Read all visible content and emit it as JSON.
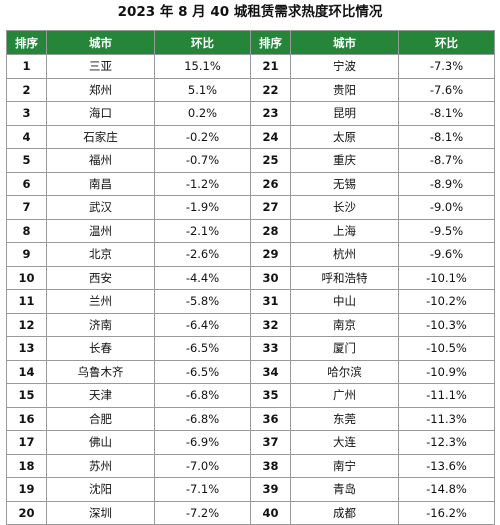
{
  "title": "2023 年 8 月 40 城租赁需求热度环比情况",
  "headers": {
    "rank": "排序",
    "city": "城市",
    "ratio": "环比"
  },
  "colors": {
    "header_bg": "#25863a",
    "header_text": "#ffffff",
    "border": "#9a9a9a"
  },
  "rows": [
    {
      "left": {
        "rank": "1",
        "city": "三亚",
        "ratio": "15.1%"
      },
      "right": {
        "rank": "21",
        "city": "宁波",
        "ratio": "-7.3%"
      }
    },
    {
      "left": {
        "rank": "2",
        "city": "郑州",
        "ratio": "5.1%"
      },
      "right": {
        "rank": "22",
        "city": "贵阳",
        "ratio": "-7.6%"
      }
    },
    {
      "left": {
        "rank": "3",
        "city": "海口",
        "ratio": "0.2%"
      },
      "right": {
        "rank": "23",
        "city": "昆明",
        "ratio": "-8.1%"
      }
    },
    {
      "left": {
        "rank": "4",
        "city": "石家庄",
        "ratio": "-0.2%"
      },
      "right": {
        "rank": "24",
        "city": "太原",
        "ratio": "-8.1%"
      }
    },
    {
      "left": {
        "rank": "5",
        "city": "福州",
        "ratio": "-0.7%"
      },
      "right": {
        "rank": "25",
        "city": "重庆",
        "ratio": "-8.7%"
      }
    },
    {
      "left": {
        "rank": "6",
        "city": "南昌",
        "ratio": "-1.2%"
      },
      "right": {
        "rank": "26",
        "city": "无锡",
        "ratio": "-8.9%"
      }
    },
    {
      "left": {
        "rank": "7",
        "city": "武汉",
        "ratio": "-1.9%"
      },
      "right": {
        "rank": "27",
        "city": "长沙",
        "ratio": "-9.0%"
      }
    },
    {
      "left": {
        "rank": "8",
        "city": "温州",
        "ratio": "-2.1%"
      },
      "right": {
        "rank": "28",
        "city": "上海",
        "ratio": "-9.5%"
      }
    },
    {
      "left": {
        "rank": "9",
        "city": "北京",
        "ratio": "-2.6%"
      },
      "right": {
        "rank": "29",
        "city": "杭州",
        "ratio": "-9.6%"
      }
    },
    {
      "left": {
        "rank": "10",
        "city": "西安",
        "ratio": "-4.4%"
      },
      "right": {
        "rank": "30",
        "city": "呼和浩特",
        "ratio": "-10.1%"
      }
    },
    {
      "left": {
        "rank": "11",
        "city": "兰州",
        "ratio": "-5.8%"
      },
      "right": {
        "rank": "31",
        "city": "中山",
        "ratio": "-10.2%"
      }
    },
    {
      "left": {
        "rank": "12",
        "city": "济南",
        "ratio": "-6.4%"
      },
      "right": {
        "rank": "32",
        "city": "南京",
        "ratio": "-10.3%"
      }
    },
    {
      "left": {
        "rank": "13",
        "city": "长春",
        "ratio": "-6.5%"
      },
      "right": {
        "rank": "33",
        "city": "厦门",
        "ratio": "-10.5%"
      }
    },
    {
      "left": {
        "rank": "14",
        "city": "乌鲁木齐",
        "ratio": "-6.5%"
      },
      "right": {
        "rank": "34",
        "city": "哈尔滨",
        "ratio": "-10.9%"
      }
    },
    {
      "left": {
        "rank": "15",
        "city": "天津",
        "ratio": "-6.8%"
      },
      "right": {
        "rank": "35",
        "city": "广州",
        "ratio": "-11.1%"
      }
    },
    {
      "left": {
        "rank": "16",
        "city": "合肥",
        "ratio": "-6.8%"
      },
      "right": {
        "rank": "36",
        "city": "东莞",
        "ratio": "-11.3%"
      }
    },
    {
      "left": {
        "rank": "17",
        "city": "佛山",
        "ratio": "-6.9%"
      },
      "right": {
        "rank": "37",
        "city": "大连",
        "ratio": "-12.3%"
      }
    },
    {
      "left": {
        "rank": "18",
        "city": "苏州",
        "ratio": "-7.0%"
      },
      "right": {
        "rank": "38",
        "city": "南宁",
        "ratio": "-13.6%"
      }
    },
    {
      "left": {
        "rank": "19",
        "city": "沈阳",
        "ratio": "-7.1%"
      },
      "right": {
        "rank": "39",
        "city": "青岛",
        "ratio": "-14.8%"
      }
    },
    {
      "left": {
        "rank": "20",
        "city": "深圳",
        "ratio": "-7.2%"
      },
      "right": {
        "rank": "40",
        "city": "成都",
        "ratio": "-16.2%"
      }
    }
  ]
}
